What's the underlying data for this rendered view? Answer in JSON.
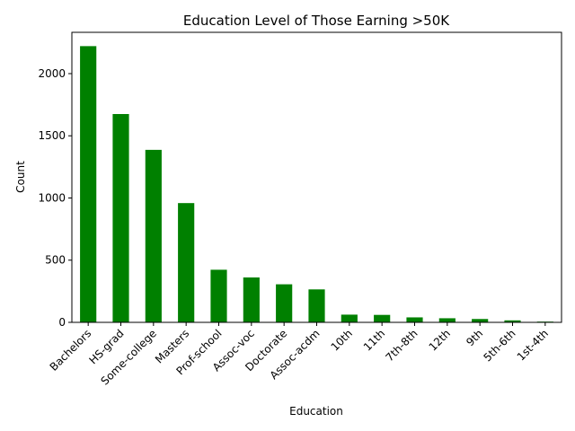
{
  "chart_data": {
    "type": "bar",
    "title": "Education Level of Those Earning >50K",
    "xlabel": "Education",
    "ylabel": "Count",
    "categories": [
      "Bachelors",
      "HS-grad",
      "Some-college",
      "Masters",
      "Prof-school",
      "Assoc-voc",
      "Doctorate",
      "Assoc-acdm",
      "10th",
      "11th",
      "7th-8th",
      "12th",
      "9th",
      "5th-6th",
      "1st-4th"
    ],
    "values": [
      2221,
      1675,
      1387,
      959,
      423,
      361,
      306,
      265,
      62,
      60,
      40,
      33,
      27,
      16,
      6
    ],
    "ylim": [
      0,
      2332
    ],
    "yticks": [
      0,
      500,
      1000,
      1500,
      2000
    ],
    "bar_color": "#008000",
    "grid": false,
    "legend": "none"
  }
}
